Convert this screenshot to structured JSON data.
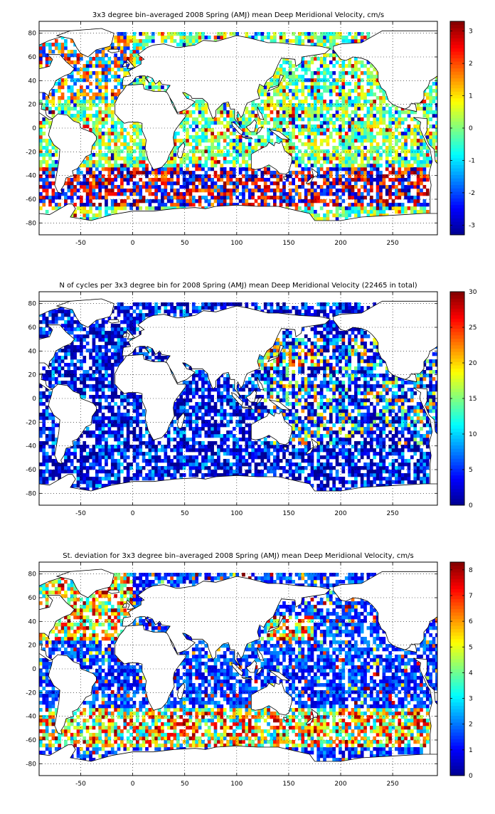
{
  "colors": {
    "land": "#ffffff",
    "frame": "#000000",
    "grid": "#000000",
    "colormap": [
      "#00008f",
      "#0000ff",
      "#0080ff",
      "#00ffff",
      "#80ff80",
      "#ffff00",
      "#ff8000",
      "#ff0000",
      "#800000"
    ]
  },
  "chart_data": [
    {
      "type": "heatmap",
      "title": "3x3 degree bin–averaged 2008 Spring (AMJ) mean Deep Meridional Velocity, cm/s",
      "xlabel": "",
      "ylabel": "",
      "xlim": [
        -90,
        293
      ],
      "ylim": [
        -90,
        90
      ],
      "xticks": [
        "-50",
        "0",
        "50",
        "100",
        "150",
        "200",
        "250"
      ],
      "xtick_values": [
        -50,
        0,
        50,
        100,
        150,
        200,
        250
      ],
      "yticks": [
        "80",
        "60",
        "40",
        "20",
        "0",
        "-20",
        "-40",
        "-60",
        "-80"
      ],
      "ytick_values": [
        80,
        60,
        40,
        20,
        0,
        -20,
        -40,
        -60,
        -80
      ],
      "grid": true,
      "bin_deg": 3,
      "colorbar": {
        "range": [
          -3.3,
          3.3
        ],
        "ticks": [
          "3",
          "2",
          "1",
          "0",
          "-1",
          "-2",
          "-3"
        ],
        "tick_values": [
          3,
          2,
          1,
          0,
          -1,
          -2,
          -3
        ]
      },
      "field": "signed velocity, high magnitude (±3) along Southern Ocean 35S-65S and North Atlantic; mostly near zero (green/yellow) in open ocean basins"
    },
    {
      "type": "heatmap",
      "title": "N of cycles per 3x3 degree bin for 2008 Spring (AMJ) mean Deep Meridional Velocity (22465 in total)",
      "xlabel": "",
      "ylabel": "",
      "xlim": [
        -90,
        293
      ],
      "ylim": [
        -90,
        90
      ],
      "xticks": [
        "-50",
        "0",
        "50",
        "100",
        "150",
        "200",
        "250"
      ],
      "xtick_values": [
        -50,
        0,
        50,
        100,
        150,
        200,
        250
      ],
      "yticks": [
        "80",
        "60",
        "40",
        "20",
        "0",
        "-20",
        "-40",
        "-60",
        "-80"
      ],
      "ytick_values": [
        80,
        60,
        40,
        20,
        0,
        -20,
        -40,
        -60,
        -80
      ],
      "grid": true,
      "bin_deg": 3,
      "total_cycles": 22465,
      "colorbar": {
        "range": [
          0,
          30
        ],
        "ticks": [
          "30",
          "25",
          "20",
          "15",
          "10",
          "5",
          "0"
        ],
        "tick_values": [
          30,
          25,
          20,
          15,
          10,
          5,
          0
        ]
      },
      "field": "counts mostly 0-10 (blue), higher (10-30) in NW Pacific, Kuroshio and scattered Pacific bins"
    },
    {
      "type": "heatmap",
      "title": "St. deviation for 3x3 degree bin–averaged 2008 Spring (AMJ) mean Deep Meridional Velocity, cm/s",
      "xlabel": "",
      "ylabel": "",
      "xlim": [
        -90,
        293
      ],
      "ylim": [
        -90,
        90
      ],
      "xticks": [
        "-50",
        "0",
        "50",
        "100",
        "150",
        "200",
        "250"
      ],
      "xtick_values": [
        -50,
        0,
        50,
        100,
        150,
        200,
        250
      ],
      "yticks": [
        "80",
        "60",
        "40",
        "20",
        "0",
        "-20",
        "-40",
        "-60",
        "-80"
      ],
      "ytick_values": [
        80,
        60,
        40,
        20,
        0,
        -20,
        -40,
        -60,
        -80
      ],
      "grid": true,
      "bin_deg": 3,
      "colorbar": {
        "range": [
          0,
          8.3
        ],
        "ticks": [
          "8",
          "7",
          "6",
          "5",
          "4",
          "3",
          "2",
          "1",
          "0"
        ],
        "tick_values": [
          8,
          7,
          6,
          5,
          4,
          3,
          2,
          1,
          0
        ]
      },
      "field": "std dev low (0-2, blue) in Pacific interior, high (5-8, red) in Southern Ocean 40S-60S, Gulf Stream and Kuroshio"
    }
  ]
}
